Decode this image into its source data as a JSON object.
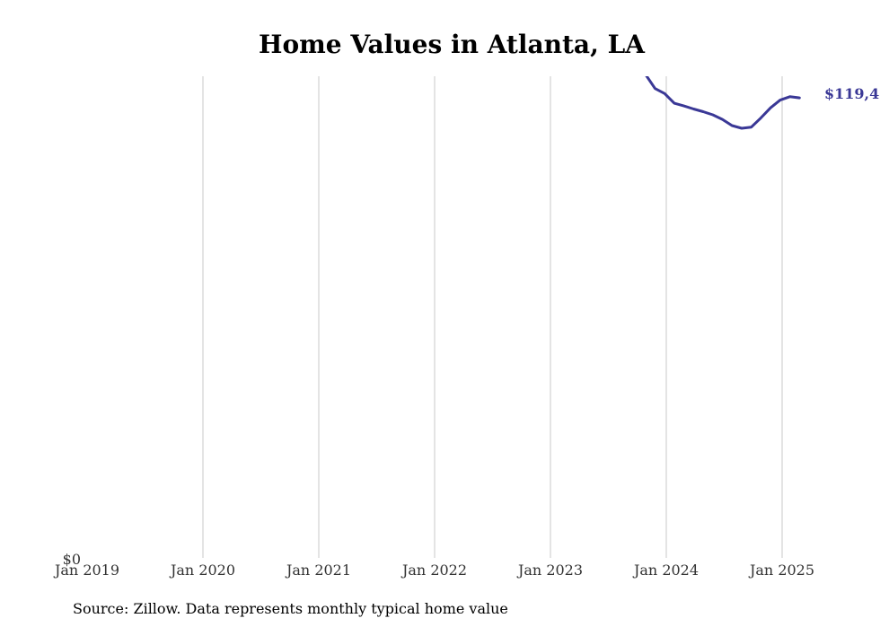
{
  "chart_data": {
    "type": "line",
    "title": "Home Values in Atlanta, LA",
    "source": "Source: Zillow. Data represents monthly typical home value",
    "x_ticks": [
      "Jan 2019",
      "Jan 2020",
      "Jan 2021",
      "Jan 2022",
      "Jan 2023",
      "Jan 2024",
      "Jan 2025"
    ],
    "y_tick_label": "$0",
    "xlim": [
      "2019-01",
      "2025-04"
    ],
    "ylim": [
      0,
      125000
    ],
    "grid": "vertical",
    "line_color": "#3a3896",
    "series": [
      {
        "end_label": "$119,4",
        "points": [
          {
            "x": "2023-11",
            "y": 125500
          },
          {
            "x": "2023-12",
            "y": 121800
          },
          {
            "x": "2024-01",
            "y": 120500
          },
          {
            "x": "2024-02",
            "y": 118000
          },
          {
            "x": "2024-03",
            "y": 117300
          },
          {
            "x": "2024-04",
            "y": 116500
          },
          {
            "x": "2024-05",
            "y": 115800
          },
          {
            "x": "2024-06",
            "y": 115000
          },
          {
            "x": "2024-07",
            "y": 113800
          },
          {
            "x": "2024-08",
            "y": 112200
          },
          {
            "x": "2024-09",
            "y": 111500
          },
          {
            "x": "2024-10",
            "y": 111800
          },
          {
            "x": "2024-11",
            "y": 114200
          },
          {
            "x": "2024-12",
            "y": 116800
          },
          {
            "x": "2025-01",
            "y": 118800
          },
          {
            "x": "2025-02",
            "y": 119700
          },
          {
            "x": "2025-03",
            "y": 119400
          }
        ]
      }
    ]
  }
}
